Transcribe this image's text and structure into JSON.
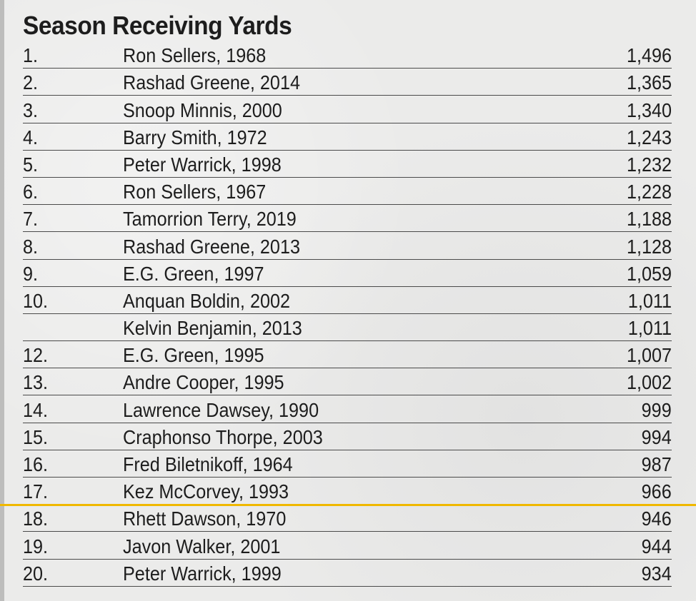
{
  "title": "Season Receiving Yards",
  "rows": [
    {
      "rank": "1.",
      "player": "Ron Sellers, 1968",
      "yards": "1,496"
    },
    {
      "rank": "2.",
      "player": "Rashad Greene, 2014",
      "yards": "1,365"
    },
    {
      "rank": "3.",
      "player": "Snoop Minnis, 2000",
      "yards": "1,340"
    },
    {
      "rank": "4.",
      "player": "Barry Smith, 1972",
      "yards": "1,243"
    },
    {
      "rank": "5.",
      "player": "Peter Warrick, 1998",
      "yards": "1,232"
    },
    {
      "rank": "6.",
      "player": "Ron Sellers, 1967",
      "yards": "1,228"
    },
    {
      "rank": "7.",
      "player": "Tamorrion Terry, 2019",
      "yards": "1,188"
    },
    {
      "rank": "8.",
      "player": "Rashad Greene, 2013",
      "yards": "1,128"
    },
    {
      "rank": "9.",
      "player": "E.G. Green, 1997",
      "yards": "1,059"
    },
    {
      "rank": "10.",
      "player": "Anquan Boldin, 2002",
      "yards": "1,011"
    },
    {
      "rank": "",
      "player": "Kelvin Benjamin, 2013",
      "yards": "1,011"
    },
    {
      "rank": "12.",
      "player": "E.G. Green, 1995",
      "yards": "1,007"
    },
    {
      "rank": "13.",
      "player": "Andre Cooper, 1995",
      "yards": "1,002"
    },
    {
      "rank": "14.",
      "player": "Lawrence Dawsey, 1990",
      "yards": "999"
    },
    {
      "rank": "15.",
      "player": "Craphonso Thorpe, 2003",
      "yards": "994"
    },
    {
      "rank": "16.",
      "player": "Fred Biletnikoff, 1964",
      "yards": "987"
    },
    {
      "rank": "17.",
      "player": "Kez McCorvey, 1993",
      "yards": "966"
    },
    {
      "rank": "18.",
      "player": "Rhett Dawson, 1970",
      "yards": "946"
    },
    {
      "rank": "19.",
      "player": "Javon Walker, 2001",
      "yards": "944"
    },
    {
      "rank": "20.",
      "player": "Peter Warrick, 1999",
      "yards": "934"
    }
  ],
  "colors": {
    "background": "#ebebea",
    "text": "#1d1d1d",
    "rule": "#4a4a4a",
    "highlight": "#f0b800"
  }
}
